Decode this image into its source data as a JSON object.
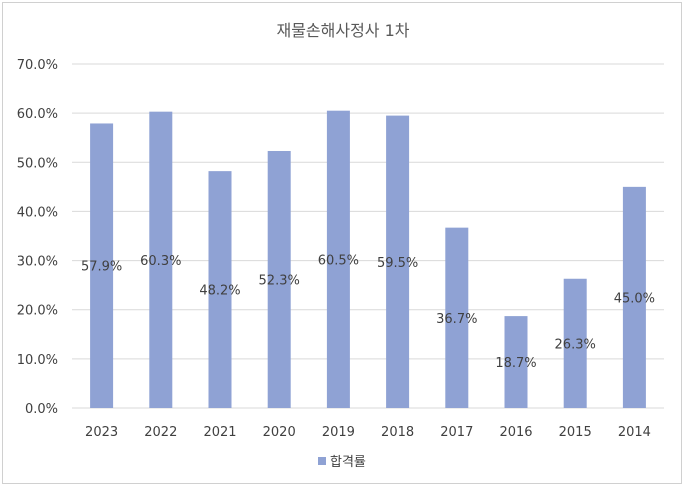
{
  "chart_data": {
    "type": "bar",
    "title": "재물손해사정사 1차",
    "categories": [
      "2023",
      "2022",
      "2021",
      "2020",
      "2019",
      "2018",
      "2017",
      "2016",
      "2015",
      "2014"
    ],
    "series": [
      {
        "name": "합격률",
        "values": [
          57.9,
          60.3,
          48.2,
          52.3,
          60.5,
          59.5,
          36.7,
          18.7,
          26.3,
          45.0
        ],
        "labels": [
          "57.9%",
          "60.3%",
          "48.2%",
          "52.3%",
          "60.5%",
          "59.5%",
          "36.7%",
          "18.7%",
          "26.3%",
          "45.0%"
        ],
        "color": "#8FA2D4"
      }
    ],
    "ylim": [
      0,
      70
    ],
    "yticks": [
      0,
      10,
      20,
      30,
      40,
      50,
      60,
      70
    ],
    "ytick_labels": [
      "0.0%",
      "10.0%",
      "20.0%",
      "30.0%",
      "40.0%",
      "50.0%",
      "60.0%",
      "70.0%"
    ],
    "xlabel": "",
    "ylabel": "",
    "grid": true,
    "legend": "bottom"
  }
}
